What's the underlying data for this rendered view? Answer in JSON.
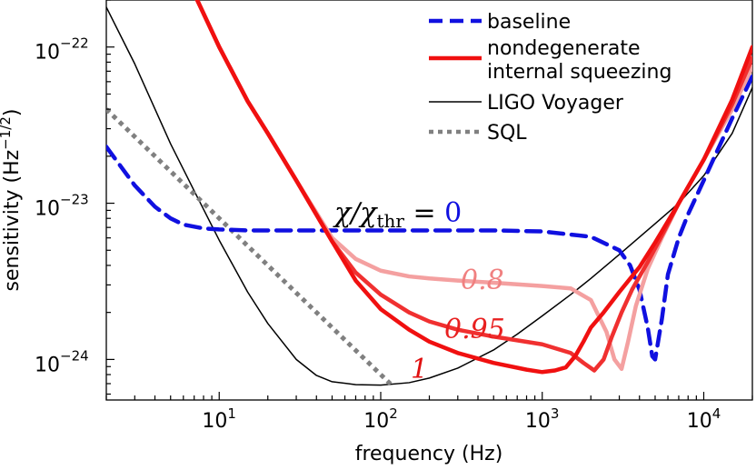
{
  "chart_data": {
    "type": "line",
    "xlabel": "frequency (Hz)",
    "ylabel": "sensitivity (Hz",
    "ylabel_exp": "−1/2",
    "ylabel_close": ")",
    "x_scale": "log",
    "y_scale": "log",
    "xlim": [
      2,
      20000
    ],
    "ylim": [
      5.5e-25,
      2e-22
    ],
    "x_ticks": [
      {
        "value": 10,
        "base": "10",
        "exp": "1"
      },
      {
        "value": 100,
        "base": "10",
        "exp": "2"
      },
      {
        "value": 1000,
        "base": "10",
        "exp": "3"
      },
      {
        "value": 10000,
        "base": "10",
        "exp": "4"
      }
    ],
    "y_ticks": [
      {
        "value": 1e-24,
        "base": "10",
        "exp": "−24"
      },
      {
        "value": 1e-23,
        "base": "10",
        "exp": "−23"
      },
      {
        "value": 1e-22,
        "base": "10",
        "exp": "−22"
      }
    ],
    "grid": false,
    "legend_position": "top-right",
    "legend": [
      {
        "label": "baseline",
        "color": "#1010e0",
        "dash": "dashed"
      },
      {
        "label": "nondegenerate",
        "label2": "internal squeezing",
        "color": "#f01010",
        "dash": "solid"
      },
      {
        "label": "LIGO Voyager",
        "color": "#000000",
        "dash": "thin"
      },
      {
        "label": "SQL",
        "color": "#808080",
        "dash": "dotted"
      }
    ],
    "annotations": [
      {
        "text": "χ/χ",
        "sub": "thr",
        "eq": " = ",
        "val": "0",
        "color": "#000000",
        "val_color": "#1010e0"
      },
      {
        "text": "0.8",
        "color": "#f08080"
      },
      {
        "text": "0.95",
        "color": "#e82020"
      },
      {
        "text": "1",
        "color": "#e01010"
      }
    ],
    "series": [
      {
        "key": "baseline",
        "color": "#1010e0",
        "x": [
          2,
          3,
          4,
          5,
          6,
          8,
          10,
          15,
          20,
          30,
          50,
          100,
          200,
          500,
          1000,
          2000,
          3000,
          3500,
          4000,
          4500,
          4800,
          5000,
          5500,
          6000,
          7000,
          8000,
          10000,
          15000,
          20000
        ],
        "y": [
          2.3e-23,
          1.3e-23,
          9.5e-24,
          8e-24,
          7.3e-24,
          6.9e-24,
          6.8e-24,
          6.7e-24,
          6.7e-24,
          6.7e-24,
          6.7e-24,
          6.7e-24,
          6.7e-24,
          6.7e-24,
          6.6e-24,
          6.1e-24,
          5e-24,
          4e-24,
          2.8e-24,
          1.6e-24,
          1.05e-24,
          1e-24,
          1.8e-24,
          3.5e-24,
          6e-24,
          8.5e-24,
          1.4e-23,
          3.5e-23,
          6.5e-23
        ]
      },
      {
        "key": "chi-0.8",
        "color": "#f4a0a0",
        "x": [
          7,
          10,
          15,
          20,
          30,
          50,
          70,
          100,
          150,
          200,
          300,
          500,
          1000,
          1500,
          2000,
          2500,
          2800,
          3100,
          3400,
          3800,
          4500,
          5500,
          7000,
          10000,
          15000,
          20000
        ],
        "y": [
          2.2e-22,
          1e-22,
          4.5e-23,
          2.8e-23,
          1.4e-23,
          6e-24,
          4.4e-24,
          3.7e-24,
          3.4e-24,
          3.3e-24,
          3.2e-24,
          3.1e-24,
          2.95e-24,
          2.85e-24,
          2.4e-24,
          1.5e-24,
          1e-24,
          8.7e-25,
          1.3e-24,
          2.2e-24,
          3.8e-24,
          6e-24,
          1e-23,
          1.9e-23,
          4e-23,
          7.5e-23
        ]
      },
      {
        "key": "chi-0.95",
        "color": "#f03030",
        "x": [
          7,
          10,
          15,
          20,
          30,
          50,
          70,
          100,
          150,
          200,
          300,
          500,
          1000,
          1500,
          1800,
          2100,
          2400,
          2700,
          3100,
          3600,
          4500,
          5500,
          7000,
          10000,
          15000,
          20000
        ],
        "y": [
          2.2e-22,
          1e-22,
          4.5e-23,
          2.8e-23,
          1.4e-23,
          5.7e-24,
          3.6e-24,
          2.6e-24,
          2e-24,
          1.75e-24,
          1.55e-24,
          1.4e-24,
          1.25e-24,
          1.1e-24,
          9.5e-25,
          8.5e-25,
          1e-24,
          1.4e-24,
          2e-24,
          2.8e-24,
          4.2e-24,
          6.2e-24,
          1e-23,
          1.9e-23,
          4.3e-23,
          8.5e-23
        ]
      },
      {
        "key": "chi-1",
        "color": "#f01010",
        "x": [
          7,
          10,
          15,
          20,
          30,
          50,
          70,
          100,
          150,
          200,
          300,
          500,
          800,
          1000,
          1200,
          1400,
          1600,
          1800,
          2000,
          2400,
          3000,
          4000,
          5000,
          7000,
          10000,
          15000,
          20000
        ],
        "y": [
          2.2e-22,
          1e-22,
          4.5e-23,
          2.8e-23,
          1.4e-23,
          5.7e-24,
          3.2e-24,
          2.1e-24,
          1.55e-24,
          1.3e-24,
          1.1e-24,
          9.5e-25,
          8.6e-25,
          8.3e-25,
          8.5e-25,
          8.9e-25,
          1.05e-24,
          1.3e-24,
          1.6e-24,
          2e-24,
          2.7e-24,
          3.9e-24,
          5.6e-24,
          1e-23,
          1.9e-23,
          4.6e-23,
          1e-22
        ]
      },
      {
        "key": "voyager",
        "color": "#000000",
        "x": [
          2,
          3,
          5,
          7,
          10,
          15,
          20,
          30,
          40,
          50,
          70,
          100,
          150,
          200,
          300,
          500,
          700,
          1000,
          1500,
          2000,
          3000,
          5000,
          7000,
          10000,
          15000,
          20000
        ],
        "y": [
          1.8e-22,
          7.8e-23,
          2.4e-23,
          1.2e-23,
          5.8e-24,
          2.7e-24,
          1.7e-24,
          1e-24,
          7.9e-25,
          7.2e-25,
          6.9e-25,
          6.85e-25,
          7.1e-25,
          7.6e-25,
          8.8e-25,
          1.15e-24,
          1.45e-24,
          1.9e-24,
          2.6e-24,
          3.3e-24,
          4.7e-24,
          7.4e-24,
          1e-23,
          1.5e-23,
          2.8e-23,
          5.5e-23
        ]
      },
      {
        "key": "sql",
        "color": "#808080",
        "x": [
          2,
          120
        ],
        "y": [
          4e-23,
          6.67e-25
        ]
      }
    ]
  }
}
